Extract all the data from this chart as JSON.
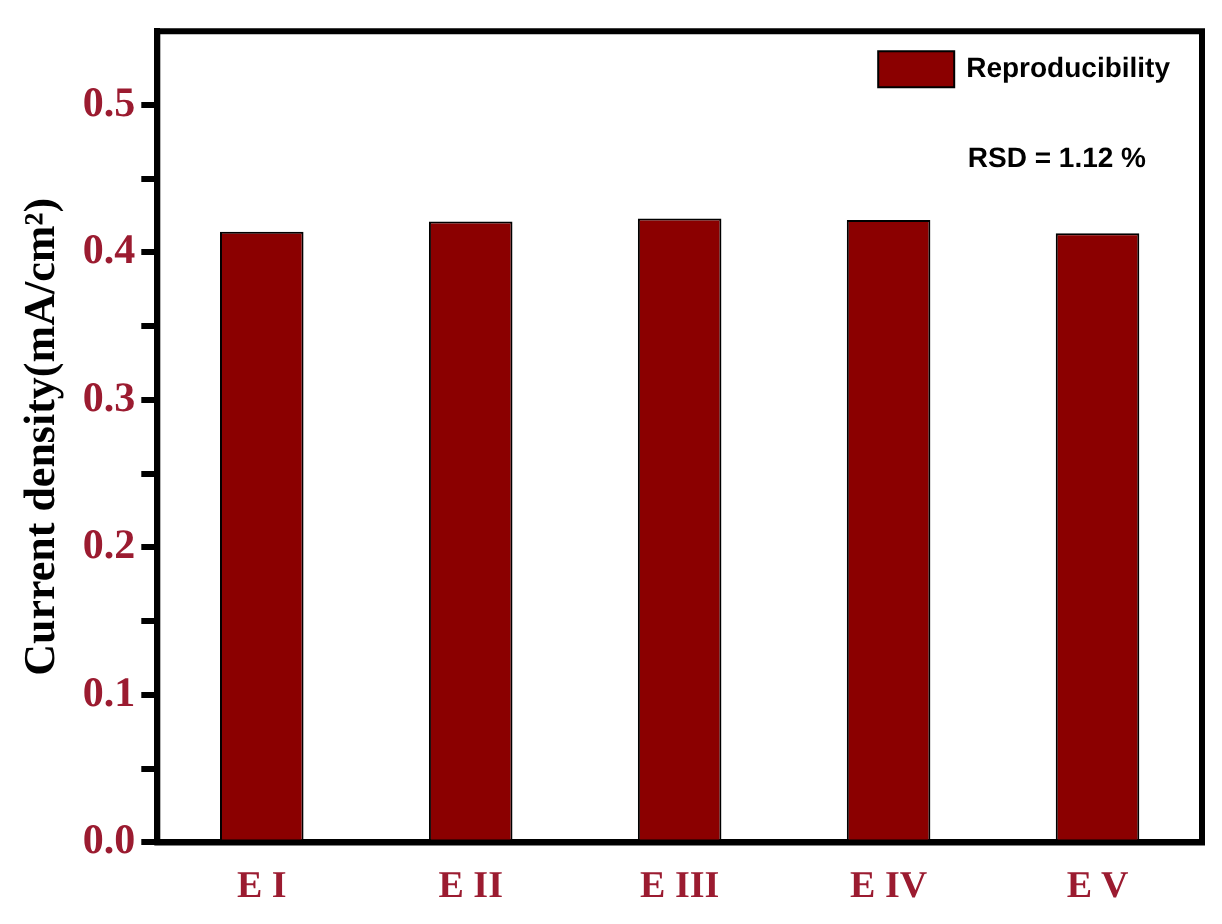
{
  "chart_data": {
    "type": "bar",
    "ylabel": "Current density(mA/cm²)",
    "categories": [
      "E I",
      "E II",
      "E III",
      "E IV",
      "E V"
    ],
    "series": [
      {
        "name": "Reproducibility",
        "color": "#8b0000",
        "values": [
          0.414,
          0.421,
          0.423,
          0.422,
          0.413
        ]
      }
    ],
    "ylim": [
      0,
      0.55
    ],
    "yticks": [
      {
        "value": 0,
        "label": "0.0"
      },
      {
        "value": 0.05,
        "label": null
      },
      {
        "value": 0.1,
        "label": "0.1"
      },
      {
        "value": 0.15,
        "label": null
      },
      {
        "value": 0.2,
        "label": "0.2"
      },
      {
        "value": 0.25,
        "label": null
      },
      {
        "value": 0.3,
        "label": "0.3"
      },
      {
        "value": 0.35,
        "label": null
      },
      {
        "value": 0.4,
        "label": "0.4"
      },
      {
        "value": 0.45,
        "label": null
      },
      {
        "value": 0.5,
        "label": "0.5"
      }
    ],
    "grid": false,
    "legend": "top right",
    "annotations": [
      "RSD = 1.12 %"
    ]
  }
}
